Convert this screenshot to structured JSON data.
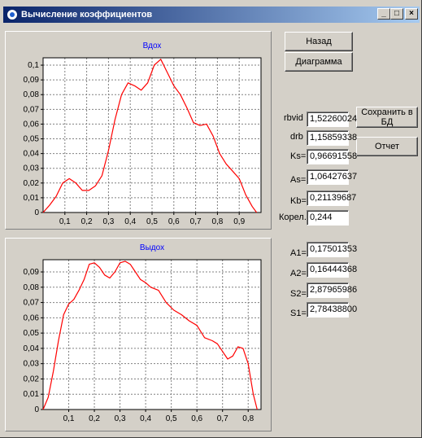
{
  "window": {
    "title": "Вычисление коэффициентов",
    "minimize_label": "_",
    "maximize_label": "□",
    "close_label": "×"
  },
  "buttons": {
    "back": "Назад",
    "diagram": "Диаграмма",
    "save_db": "Сохранить в БД",
    "report": "Отчет"
  },
  "fields": [
    {
      "label": "rbvid",
      "value": "1,52260024"
    },
    {
      "label": "drb",
      "value": "1,15859338"
    },
    {
      "label": "Ks=",
      "value": "0,96691558"
    },
    {
      "label": "As=",
      "value": "1,06427637"
    },
    {
      "label": "Kb=",
      "value": "0,21139687"
    },
    {
      "label": "Корел.",
      "value": "0,244"
    },
    {
      "label": "A1=",
      "value": "0,17501353"
    },
    {
      "label": "A2=",
      "value": "0,16444368"
    },
    {
      "label": "S2=",
      "value": "2,87965986"
    },
    {
      "label": "S1=",
      "value": "2,78438800"
    }
  ],
  "colors": {
    "curve": "#ff0000",
    "title": "#0000ff",
    "grid": "#808080"
  },
  "chart_data": [
    {
      "type": "line",
      "title": "Вдох",
      "xlim": [
        0,
        1.0
      ],
      "ylim": [
        0,
        0.105
      ],
      "xticks": [
        0.1,
        0.2,
        0.3,
        0.4,
        0.5,
        0.6,
        0.7,
        0.8,
        0.9
      ],
      "xtick_labels": [
        "0,1",
        "0,2",
        "0,3",
        "0,4",
        "0,5",
        "0,6",
        "0,7",
        "0,8",
        "0,9"
      ],
      "yticks": [
        0,
        0.01,
        0.02,
        0.03,
        0.04,
        0.05,
        0.06,
        0.07,
        0.08,
        0.09,
        0.1
      ],
      "ytick_labels": [
        "0",
        "0,01",
        "0,02",
        "0,03",
        "0,04",
        "0,05",
        "0,06",
        "0,07",
        "0,08",
        "0,09",
        "0,1"
      ],
      "grid": true,
      "series": [
        {
          "x": [
            0,
            0.03,
            0.06,
            0.09,
            0.12,
            0.15,
            0.18,
            0.21,
            0.24,
            0.27,
            0.3,
            0.33,
            0.36,
            0.39,
            0.42,
            0.45,
            0.48,
            0.51,
            0.54,
            0.57,
            0.6,
            0.63,
            0.66,
            0.69,
            0.72,
            0.75,
            0.78,
            0.81,
            0.84,
            0.87,
            0.9,
            0.93,
            0.96,
            0.98
          ],
          "y": [
            0,
            0.005,
            0.011,
            0.02,
            0.023,
            0.02,
            0.015,
            0.015,
            0.018,
            0.025,
            0.042,
            0.063,
            0.08,
            0.088,
            0.086,
            0.083,
            0.088,
            0.1,
            0.104,
            0.095,
            0.086,
            0.08,
            0.071,
            0.061,
            0.059,
            0.06,
            0.052,
            0.04,
            0.033,
            0.028,
            0.023,
            0.012,
            0.004,
            0
          ]
        }
      ]
    },
    {
      "type": "line",
      "title": "Выдох",
      "xlim": [
        0,
        0.85
      ],
      "ylim": [
        0,
        0.098
      ],
      "xticks": [
        0.1,
        0.2,
        0.3,
        0.4,
        0.5,
        0.6,
        0.7,
        0.8
      ],
      "xtick_labels": [
        "0,1",
        "0,2",
        "0,3",
        "0,4",
        "0,5",
        "0,6",
        "0,7",
        "0,8"
      ],
      "yticks": [
        0,
        0.01,
        0.02,
        0.03,
        0.04,
        0.05,
        0.06,
        0.07,
        0.08,
        0.09
      ],
      "ytick_labels": [
        "0",
        "0,01",
        "0,02",
        "0,03",
        "0,04",
        "0,05",
        "0,06",
        "0,07",
        "0,08",
        "0,09"
      ],
      "grid": true,
      "series": [
        {
          "x": [
            0,
            0.02,
            0.04,
            0.06,
            0.08,
            0.1,
            0.12,
            0.14,
            0.16,
            0.18,
            0.2,
            0.22,
            0.24,
            0.26,
            0.28,
            0.3,
            0.32,
            0.34,
            0.36,
            0.38,
            0.4,
            0.42,
            0.45,
            0.48,
            0.51,
            0.54,
            0.57,
            0.6,
            0.63,
            0.66,
            0.68,
            0.7,
            0.72,
            0.74,
            0.76,
            0.78,
            0.8,
            0.82,
            0.835
          ],
          "y": [
            0,
            0.008,
            0.025,
            0.045,
            0.062,
            0.069,
            0.072,
            0.078,
            0.085,
            0.095,
            0.096,
            0.093,
            0.088,
            0.086,
            0.09,
            0.096,
            0.097,
            0.095,
            0.09,
            0.085,
            0.083,
            0.08,
            0.078,
            0.07,
            0.065,
            0.062,
            0.058,
            0.055,
            0.047,
            0.045,
            0.043,
            0.038,
            0.033,
            0.035,
            0.041,
            0.04,
            0.03,
            0.01,
            0
          ]
        }
      ]
    }
  ]
}
